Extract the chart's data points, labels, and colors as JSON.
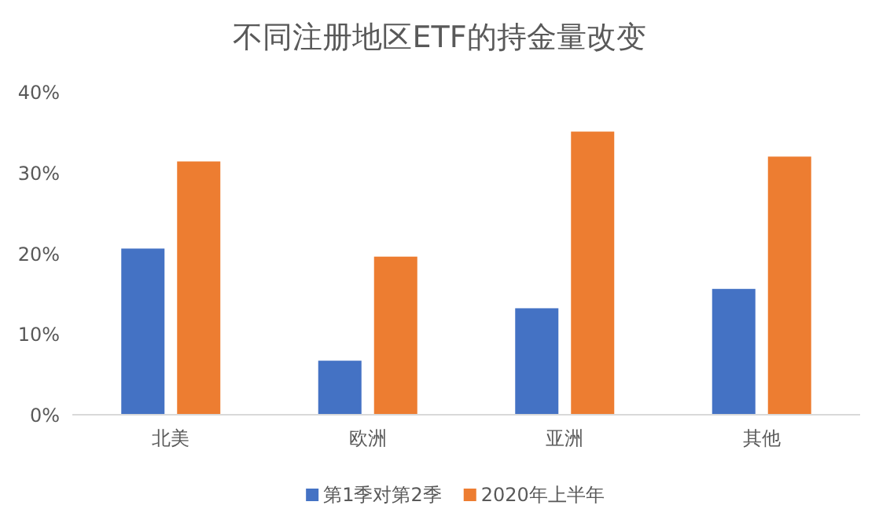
{
  "chart_data": {
    "type": "bar",
    "title": "不同注册地区ETF的持金量改变",
    "categories": [
      "北美",
      "欧洲",
      "亚洲",
      "其他"
    ],
    "series": [
      {
        "name": "第1季对第2季",
        "color": "#4472c4",
        "values": [
          20.6,
          6.7,
          13.2,
          15.6
        ]
      },
      {
        "name": "2020年上半年",
        "color": "#ed7d31",
        "values": [
          31.4,
          19.6,
          35.1,
          32.0
        ]
      }
    ],
    "ylim": [
      0,
      40
    ],
    "yticks": [
      {
        "value": 0,
        "label": "0%"
      },
      {
        "value": 10,
        "label": "10%"
      },
      {
        "value": 20,
        "label": "20%"
      },
      {
        "value": 30,
        "label": "30%"
      },
      {
        "value": 40,
        "label": "40%"
      }
    ],
    "grid": false,
    "legend": "bottom"
  }
}
